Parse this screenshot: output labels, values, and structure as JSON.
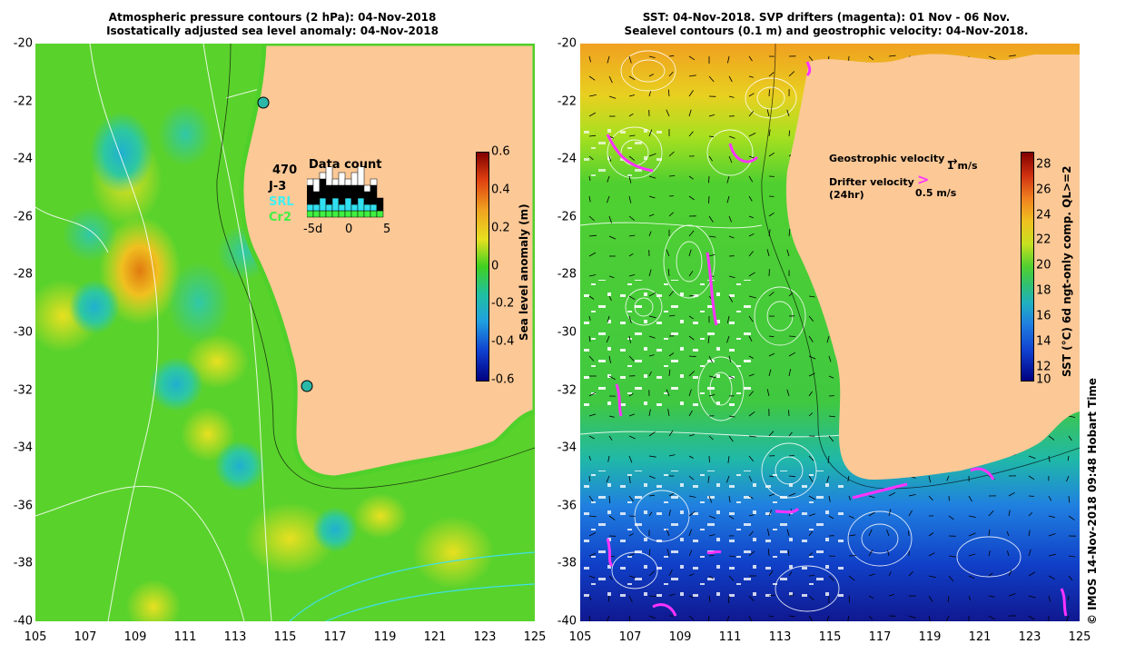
{
  "left_panel": {
    "title_line1": "Atmospheric pressure contours (2 hPa): 04-Nov-2018",
    "title_line2": "Isostatically adjusted sea level anomaly: 04-Nov-2018",
    "y_ticks": [
      "-20",
      "-22",
      "-24",
      "-26",
      "-28",
      "-30",
      "-32",
      "-34",
      "-36",
      "-38",
      "-40"
    ],
    "x_ticks": [
      "105",
      "107",
      "109",
      "111",
      "113",
      "115",
      "117",
      "119",
      "121",
      "123",
      "125"
    ],
    "colorbar": {
      "label": "Sea level anomaly (m)",
      "ticks": [
        "0.6",
        "0.4",
        "0.2",
        "0",
        "-0.2",
        "-0.4",
        "-0.6"
      ]
    },
    "data_count": {
      "title": "Data count",
      "count": "470",
      "sat1": "J-3",
      "sat2": "SRL",
      "sat3": "Cr2",
      "axis_ticks": [
        "-5d",
        "0",
        "5"
      ],
      "bars": [
        {
          "black": 3,
          "cyan": 1,
          "white": 1
        },
        {
          "black": 2,
          "cyan": 1,
          "white": 2
        },
        {
          "black": 3,
          "cyan": 2,
          "white": 1
        },
        {
          "black": 3,
          "cyan": 1,
          "white": 3
        },
        {
          "black": 2,
          "cyan": 2,
          "white": 1
        },
        {
          "black": 3,
          "cyan": 1,
          "white": 2
        },
        {
          "black": 2,
          "cyan": 2,
          "white": 1
        },
        {
          "black": 3,
          "cyan": 1,
          "white": 2
        },
        {
          "black": 2,
          "cyan": 2,
          "white": 3
        },
        {
          "black": 2,
          "cyan": 1,
          "white": 1
        },
        {
          "black": 3,
          "cyan": 1,
          "white": 1
        },
        {
          "black": 2,
          "cyan": 0,
          "white": 0
        }
      ]
    }
  },
  "right_panel": {
    "title_line1": "SST: 04-Nov-2018. SVP drifters (magenta): 01 Nov - 06 Nov.",
    "title_line2": "Sealevel contours (0.1 m) and geostrophic velocity: 04-Nov-2018.",
    "y_ticks": [
      "-20",
      "-22",
      "-24",
      "-26",
      "-28",
      "-30",
      "-32",
      "-34",
      "-36",
      "-38",
      "-40"
    ],
    "x_ticks": [
      "105",
      "107",
      "109",
      "111",
      "113",
      "115",
      "117",
      "119",
      "121",
      "123",
      "125"
    ],
    "colorbar": {
      "label": "SST (°C) 6d ngt-only comp. QL>=2",
      "ticks": [
        "28",
        "26",
        "24",
        "22",
        "20",
        "18",
        "16",
        "14",
        "12",
        "10"
      ]
    },
    "legend": {
      "geo_label": "Geostrophic velocity",
      "geo_scale": "1 m/s",
      "drifter_label": "Drifter velocity",
      "drifter_sub": "(24hr)",
      "drifter_scale": "0.5 m/s"
    }
  },
  "credit": "© IMOS 14-Nov-2018 09:48 Hobart Time",
  "colors": {
    "land": "#fbc896",
    "ocean_green": "#4fd02a",
    "drifter": "#ff33ff"
  }
}
